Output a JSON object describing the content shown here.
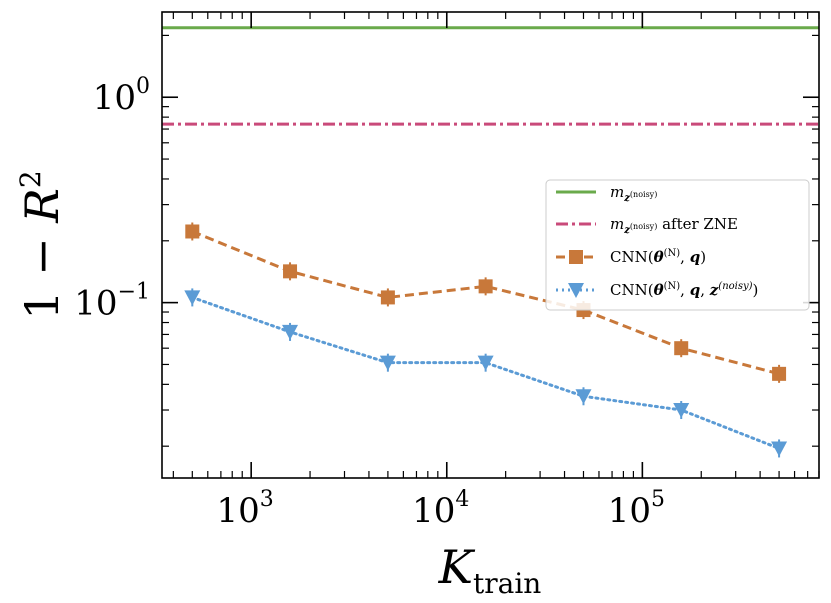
{
  "chart_data": {
    "type": "line",
    "xscale": "log",
    "yscale": "log",
    "xlim": [
      350,
      800000
    ],
    "ylim": [
      0.014,
      2.6
    ],
    "xlabel": "K_train",
    "ylabel": "1 − R^2",
    "x_ticks": [
      {
        "value": 1000,
        "base": "10",
        "exp": "3"
      },
      {
        "value": 10000,
        "base": "10",
        "exp": "4"
      },
      {
        "value": 100000,
        "base": "10",
        "exp": "5"
      }
    ],
    "y_ticks": [
      {
        "value": 1,
        "base": "10",
        "exp": "0"
      },
      {
        "value": 0.1,
        "base": "10",
        "exp": "−1"
      }
    ],
    "legend_position": "center-right",
    "hlines": [
      {
        "name": "m_z(noisy)",
        "legend": "m z(noisy)",
        "y": 2.18,
        "color": "#6aaa4b",
        "dash": "solid"
      },
      {
        "name": "m_z(noisy) after ZNE",
        "legend": "m z(noisy) after ZNE",
        "y": 0.74,
        "color": "#c94a7a",
        "dash": "dashdot"
      }
    ],
    "series": [
      {
        "name": "CNN(θ^(N), q)",
        "legend": "CNN(θ(N), q)",
        "color": "#c8783a",
        "marker": "square",
        "dash": "dashed",
        "x": [
          500,
          1580,
          5000,
          15800,
          50000,
          158000,
          500000
        ],
        "y": [
          0.222,
          0.142,
          0.106,
          0.12,
          0.092,
          0.06,
          0.045
        ]
      },
      {
        "name": "CNN(θ^(N), q, z^(noisy))",
        "legend": "CNN(θ(N), q, z(noisy))",
        "color": "#5b9bd5",
        "marker": "triangle-down",
        "dash": "dotted",
        "x": [
          500,
          1580,
          5000,
          15800,
          50000,
          158000,
          500000
        ],
        "y": [
          0.106,
          0.072,
          0.051,
          0.051,
          0.035,
          0.03,
          0.0195
        ]
      }
    ]
  }
}
